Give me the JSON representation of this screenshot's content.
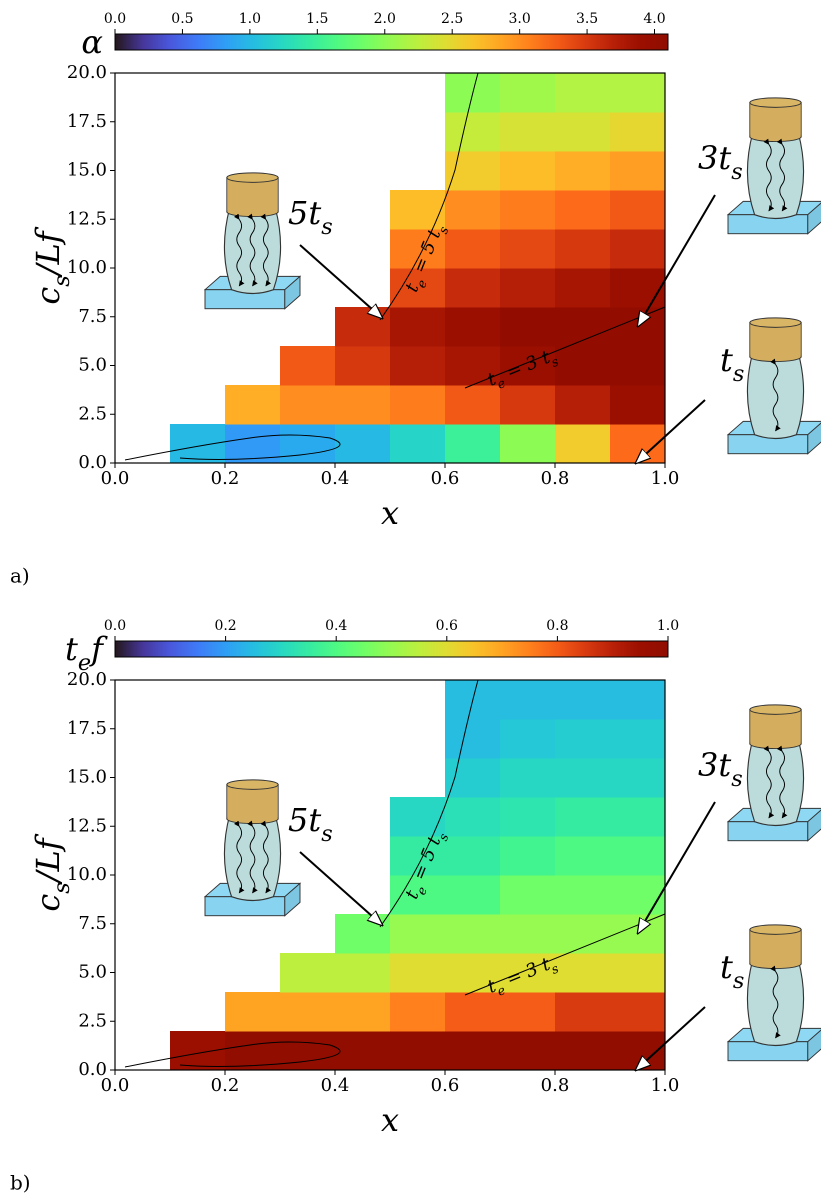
{
  "chart_data": [
    {
      "type": "heatmap",
      "panel_label": "a)",
      "colorbar_label": [
        "α"
      ],
      "clim": [
        0,
        4.1
      ],
      "cticks": [
        {
          "value": 0,
          "label": "0.0"
        },
        0.5,
        {
          "value": 1,
          "label": "1.0"
        },
        1.5,
        {
          "value": 2,
          "label": "2.0"
        },
        2.5,
        {
          "value": 3,
          "label": "3.0"
        },
        3.5,
        {
          "value": 4,
          "label": "4.0"
        }
      ],
      "xlabel": [
        "x"
      ],
      "ylabel": [
        "c",
        "s",
        "/Lf"
      ],
      "xlim": [
        0,
        1
      ],
      "ylim": [
        0,
        20
      ],
      "xticks": [
        {
          "value": 0,
          "label": "0.0"
        },
        0.2,
        0.4,
        0.6,
        0.8,
        {
          "value": 1,
          "label": "1.0"
        }
      ],
      "yticks": [
        {
          "value": 0,
          "label": "0.0"
        },
        2.5,
        {
          "value": 5,
          "label": "5.0"
        },
        7.5,
        {
          "value": 10,
          "label": "10.0"
        },
        12.5,
        {
          "value": 15,
          "label": "15.0"
        },
        17.5,
        {
          "value": 20,
          "label": "20.0"
        }
      ],
      "x": [
        0.05,
        0.15,
        0.25,
        0.35,
        0.45,
        0.55,
        0.65,
        0.75,
        0.85,
        0.95
      ],
      "y": [
        1,
        3,
        5,
        7,
        9,
        11,
        13,
        15,
        17,
        19
      ],
      "z": [
        [
          null,
          1.0,
          0.8,
          0.9,
          1.0,
          1.2,
          1.5,
          2.0,
          2.6,
          3.2
        ],
        [
          null,
          null,
          2.8,
          3.0,
          3.0,
          3.1,
          3.3,
          3.5,
          3.7,
          3.9
        ],
        [
          null,
          null,
          null,
          3.3,
          3.5,
          3.7,
          3.8,
          3.9,
          4.0,
          4.0
        ],
        [
          null,
          null,
          null,
          null,
          3.6,
          3.8,
          3.9,
          4.0,
          4.0,
          4.0
        ],
        [
          null,
          null,
          null,
          null,
          null,
          3.4,
          3.6,
          3.7,
          3.8,
          3.9
        ],
        [
          null,
          null,
          null,
          null,
          null,
          3.1,
          3.3,
          3.4,
          3.5,
          3.6
        ],
        [
          null,
          null,
          null,
          null,
          null,
          2.7,
          3.0,
          3.1,
          3.2,
          3.3
        ],
        [
          null,
          null,
          null,
          null,
          null,
          null,
          2.6,
          2.7,
          2.8,
          2.9
        ],
        [
          null,
          null,
          null,
          null,
          null,
          null,
          2.3,
          2.4,
          2.4,
          2.5
        ],
        [
          null,
          null,
          null,
          null,
          null,
          null,
          2.0,
          2.1,
          2.2,
          2.2
        ]
      ],
      "contours": [
        {
          "label": [
            "t",
            "e",
            " = 5 t",
            "s"
          ]
        },
        {
          "label": [
            "t",
            "e",
            " = 3 t",
            "s"
          ]
        }
      ],
      "annotations": [
        {
          "text": [
            "5t",
            "s"
          ]
        },
        {
          "text": [
            "3t",
            "s"
          ]
        },
        {
          "text": [
            "t",
            "s"
          ]
        }
      ]
    },
    {
      "type": "heatmap",
      "panel_label": "b)",
      "colorbar_label": [
        "t",
        "e",
        "f"
      ],
      "clim": [
        0,
        1
      ],
      "cticks": [
        {
          "value": 0,
          "label": "0.0"
        },
        0.2,
        0.4,
        0.6,
        0.8,
        {
          "value": 1,
          "label": "1.0"
        }
      ],
      "xlabel": [
        "x"
      ],
      "ylabel": [
        "c",
        "s",
        "/Lf"
      ],
      "xlim": [
        0,
        1
      ],
      "ylim": [
        0,
        20
      ],
      "xticks": [
        {
          "value": 0,
          "label": "0.0"
        },
        0.2,
        0.4,
        0.6,
        0.8,
        {
          "value": 1,
          "label": "1.0"
        }
      ],
      "yticks": [
        {
          "value": 0,
          "label": "0.0"
        },
        2.5,
        {
          "value": 5,
          "label": "5.0"
        },
        7.5,
        {
          "value": 10,
          "label": "10.0"
        },
        12.5,
        {
          "value": 15,
          "label": "15.0"
        },
        17.5,
        {
          "value": 20,
          "label": "20.0"
        }
      ],
      "x": [
        0.05,
        0.15,
        0.25,
        0.35,
        0.45,
        0.55,
        0.65,
        0.75,
        0.85,
        0.95
      ],
      "y": [
        1,
        3,
        5,
        7,
        9,
        11,
        13,
        15,
        17,
        19
      ],
      "z": [
        [
          null,
          0.95,
          1.0,
          1.0,
          1.0,
          1.0,
          1.0,
          1.0,
          1.0,
          1.0
        ],
        [
          null,
          null,
          0.7,
          0.7,
          0.7,
          0.75,
          0.8,
          0.8,
          0.85,
          0.85
        ],
        [
          null,
          null,
          null,
          0.55,
          0.55,
          0.6,
          0.6,
          0.6,
          0.6,
          0.6
        ],
        [
          null,
          null,
          null,
          null,
          0.45,
          0.5,
          0.5,
          0.5,
          0.5,
          0.5
        ],
        [
          null,
          null,
          null,
          null,
          null,
          0.4,
          0.4,
          0.45,
          0.45,
          0.45
        ],
        [
          null,
          null,
          null,
          null,
          null,
          0.35,
          0.35,
          0.38,
          0.4,
          0.4
        ],
        [
          null,
          null,
          null,
          null,
          null,
          0.3,
          0.32,
          0.33,
          0.35,
          0.35
        ],
        [
          null,
          null,
          null,
          null,
          null,
          null,
          0.28,
          0.3,
          0.3,
          0.3
        ],
        [
          null,
          null,
          null,
          null,
          null,
          null,
          0.25,
          0.27,
          0.28,
          0.28
        ],
        [
          null,
          null,
          null,
          null,
          null,
          null,
          0.25,
          0.25,
          0.25,
          0.25
        ]
      ],
      "contours": [
        {
          "label": [
            "t",
            "e",
            " = 5 t",
            "s"
          ]
        },
        {
          "label": [
            "t",
            "e",
            " = 3 t",
            "s"
          ]
        }
      ],
      "annotations": [
        {
          "text": [
            "5t",
            "s"
          ]
        },
        {
          "text": [
            "3t",
            "s"
          ]
        },
        {
          "text": [
            "t",
            "s"
          ]
        }
      ]
    }
  ]
}
